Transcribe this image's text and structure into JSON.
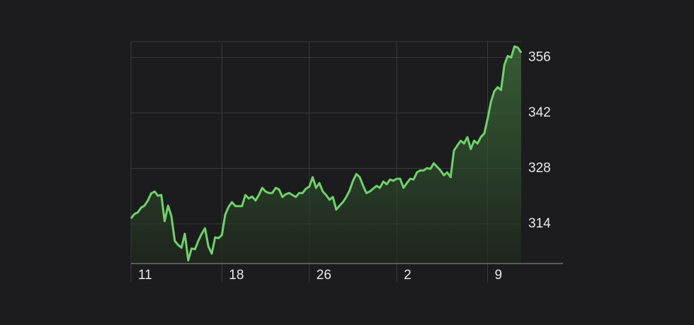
{
  "chart_data": {
    "type": "line",
    "values": [
      315.4,
      316.5,
      316.9,
      318.1,
      318.6,
      319.9,
      321.7,
      322.2,
      321.1,
      321.3,
      314.7,
      318.6,
      316.0,
      309.7,
      308.7,
      308.0,
      311.5,
      304.8,
      307.8,
      307.6,
      309.7,
      311.5,
      312.9,
      308.3,
      306.5,
      310.6,
      310.4,
      311.2,
      316.3,
      318.3,
      319.5,
      318.5,
      318.5,
      318.5,
      321.3,
      320.4,
      320.9,
      319.9,
      321.3,
      323.1,
      322.2,
      321.8,
      321.8,
      323.1,
      322.7,
      320.8,
      321.5,
      321.8,
      321.3,
      320.8,
      321.8,
      321.8,
      322.9,
      323.4,
      325.8,
      323.1,
      324.3,
      322.2,
      321.3,
      320.1,
      320.8,
      317.6,
      318.6,
      319.5,
      320.8,
      322.5,
      324.9,
      326.6,
      325.8,
      323.6,
      321.8,
      322.2,
      322.9,
      323.6,
      323.1,
      324.7,
      324.0,
      325.2,
      324.9,
      325.4,
      325.4,
      323.1,
      324.3,
      325.4,
      325.2,
      327.0,
      327.5,
      327.5,
      328.1,
      327.9,
      329.3,
      328.4,
      327.5,
      326.3,
      327.0,
      325.8,
      332.5,
      333.8,
      335.0,
      334.3,
      335.9,
      332.9,
      335.0,
      334.3,
      335.9,
      336.8,
      340.5,
      344.8,
      347.5,
      348.5,
      347.8,
      354.2,
      356.4,
      356.0,
      358.8,
      358.5,
      357.2
    ],
    "color": "#6fd26b",
    "xlim": [
      0,
      116
    ],
    "xticks": [
      {
        "value": 0,
        "label": "11"
      },
      {
        "value": 27,
        "label": "18"
      },
      {
        "value": 53,
        "label": "26"
      },
      {
        "value": 79,
        "label": "2"
      },
      {
        "value": 106,
        "label": "9"
      }
    ],
    "ylim": [
      304,
      360
    ],
    "yticks": [
      314,
      328,
      342,
      356
    ],
    "grid": true
  }
}
